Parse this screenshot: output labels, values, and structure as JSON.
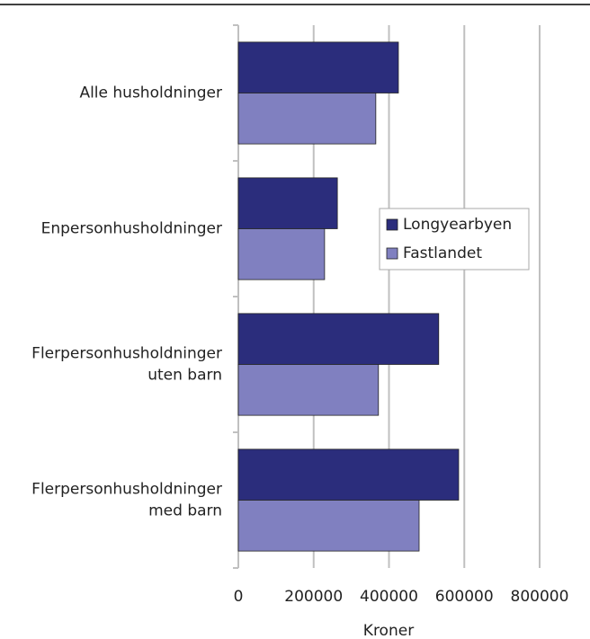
{
  "chart_data": {
    "type": "bar",
    "orientation": "horizontal",
    "categories": [
      "Alle husholdninger",
      "Enpersonhusholdninger",
      "Flerpersonhusholdninger\nuten barn",
      "Flerpersonhusholdninger\nmed barn"
    ],
    "series": [
      {
        "name": "Longyearbyen",
        "color": "#2b2d7c",
        "values": [
          425000,
          263000,
          532000,
          585000
        ]
      },
      {
        "name": "Fastlandet",
        "color": "#8080c0",
        "values": [
          365000,
          229000,
          372000,
          480000
        ]
      }
    ],
    "xlabel": "Kroner",
    "xlim": [
      0,
      800000
    ],
    "xticks": [
      0,
      200000,
      400000,
      600000,
      800000
    ],
    "grid": true,
    "legend": "right"
  }
}
